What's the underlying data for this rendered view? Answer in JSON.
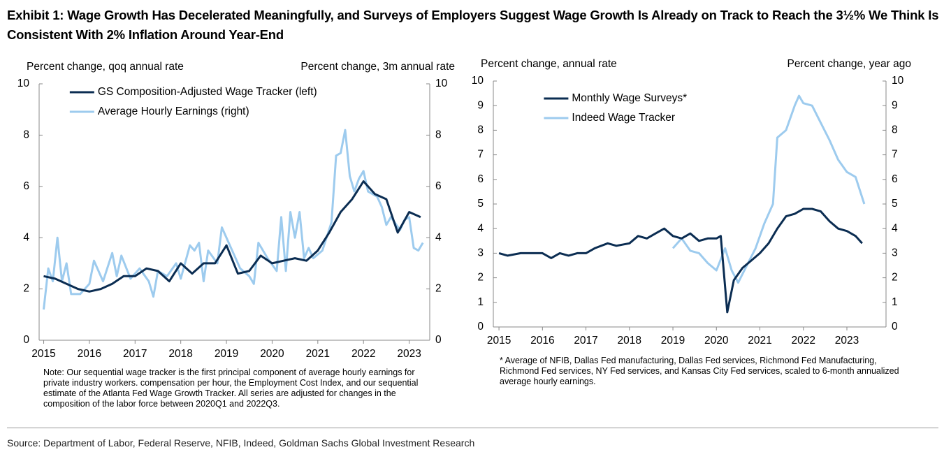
{
  "title": "Exhibit 1: Wage Growth Has Decelerated Meaningfully, and Surveys of Employers Suggest Wage Growth Is Already on Track to Reach the 3½% We Think Is Consistent With 2% Inflation Around Year-End",
  "source": "Source: Department of Labor, Federal Reserve, NFIB, Indeed, Goldman Sachs Global Investment Research",
  "chart_data": [
    {
      "type": "line",
      "ylabel": "Percent change, qoq annual rate",
      "y2label": "Percent change, 3m annual rate",
      "note": "Note: Our sequential wage tracker is the first principal component of average hourly earnings for private industry workers. compensation per hour, the Employment Cost Index, and our sequential estimate of the Atlanta Fed Wage Growth Tracker. All series are adjusted for changes in the composition of the labor force between 2020Q1 and 2022Q3.",
      "xlim": [
        2014.9,
        2023.45
      ],
      "xticks": [
        2015,
        2016,
        2017,
        2018,
        2019,
        2020,
        2021,
        2022,
        2023
      ],
      "ylim": [
        0,
        10
      ],
      "yticks": [
        0,
        2,
        4,
        6,
        8,
        10
      ],
      "y2lim": [
        0,
        10
      ],
      "y2ticks": [
        0,
        2,
        4,
        6,
        8,
        10
      ],
      "legend": "upper left",
      "series": [
        {
          "name": "GS Composition-Adjusted Wage Tracker (left)",
          "color": "#0b2d52",
          "x": [
            2015.0,
            2015.25,
            2015.5,
            2015.75,
            2016.0,
            2016.25,
            2016.5,
            2016.75,
            2017.0,
            2017.25,
            2017.5,
            2017.75,
            2018.0,
            2018.25,
            2018.5,
            2018.75,
            2019.0,
            2019.25,
            2019.5,
            2019.75,
            2020.0,
            2020.25,
            2020.5,
            2020.75,
            2021.0,
            2021.25,
            2021.5,
            2021.75,
            2022.0,
            2022.25,
            2022.5,
            2022.75,
            2023.0,
            2023.25
          ],
          "values": [
            2.5,
            2.4,
            2.2,
            2.0,
            1.9,
            2.0,
            2.2,
            2.5,
            2.5,
            2.8,
            2.7,
            2.3,
            3.0,
            2.6,
            3.0,
            3.0,
            3.7,
            2.6,
            2.7,
            3.3,
            3.0,
            3.1,
            3.2,
            3.1,
            3.5,
            4.2,
            5.0,
            5.5,
            6.2,
            5.7,
            5.5,
            4.2,
            5.0,
            4.8
          ]
        },
        {
          "name": "Average Hourly Earnings (right)",
          "color": "#9dcbee",
          "axis": "y2",
          "x": [
            2015.0,
            2015.1,
            2015.2,
            2015.3,
            2015.4,
            2015.5,
            2015.6,
            2015.8,
            2016.0,
            2016.1,
            2016.3,
            2016.5,
            2016.6,
            2016.7,
            2016.9,
            2017.1,
            2017.3,
            2017.4,
            2017.5,
            2017.7,
            2017.9,
            2018.0,
            2018.2,
            2018.3,
            2018.4,
            2018.5,
            2018.6,
            2018.8,
            2018.9,
            2019.1,
            2019.3,
            2019.5,
            2019.6,
            2019.7,
            2019.9,
            2020.1,
            2020.2,
            2020.3,
            2020.4,
            2020.5,
            2020.6,
            2020.7,
            2020.8,
            2020.9,
            2021.1,
            2021.3,
            2021.4,
            2021.5,
            2021.6,
            2021.7,
            2021.8,
            2021.9,
            2022.0,
            2022.1,
            2022.3,
            2022.4,
            2022.5,
            2022.6,
            2022.8,
            2022.9,
            2023.0,
            2023.1,
            2023.2,
            2023.3
          ],
          "values": [
            1.2,
            2.8,
            2.3,
            4.0,
            2.3,
            3.0,
            1.8,
            1.8,
            2.2,
            3.1,
            2.3,
            3.4,
            2.5,
            3.3,
            2.4,
            2.8,
            2.3,
            1.7,
            2.7,
            2.5,
            3.0,
            2.4,
            3.7,
            3.5,
            3.8,
            2.3,
            3.5,
            3.0,
            4.4,
            3.6,
            2.8,
            2.5,
            2.2,
            3.8,
            3.2,
            2.7,
            4.8,
            2.7,
            5.0,
            4.0,
            5.0,
            3.2,
            3.6,
            3.2,
            3.5,
            4.6,
            7.2,
            7.3,
            8.2,
            6.4,
            5.8,
            6.3,
            6.6,
            5.8,
            5.6,
            5.2,
            4.5,
            4.8,
            4.3,
            4.7,
            4.8,
            3.6,
            3.5,
            3.8
          ]
        }
      ]
    },
    {
      "type": "line",
      "ylabel": "Percent change, annual rate",
      "y2label": "Percent change, year ago",
      "note": "* Average of NFIB, Dallas Fed manufacturing, Dallas Fed services, Richmond Fed Manufacturing, Richmond Fed services, NY Fed services, and Kansas City Fed services, scaled to 6-month annualized average hourly earnings.",
      "xlim": [
        2014.87,
        2023.9
      ],
      "xticks": [
        2015,
        2016,
        2017,
        2018,
        2019,
        2020,
        2021,
        2022,
        2023
      ],
      "ylim": [
        0,
        10
      ],
      "yticks": [
        0,
        1,
        2,
        3,
        4,
        5,
        6,
        7,
        8,
        9,
        10
      ],
      "y2lim": [
        0,
        10
      ],
      "y2ticks": [
        0,
        1,
        2,
        3,
        4,
        5,
        6,
        7,
        8,
        9,
        10
      ],
      "legend": "upper center",
      "series": [
        {
          "name": "Monthly Wage Surveys*",
          "color": "#0b2d52",
          "x": [
            2015.0,
            2015.2,
            2015.5,
            2015.8,
            2016.0,
            2016.2,
            2016.4,
            2016.6,
            2016.8,
            2017.0,
            2017.2,
            2017.5,
            2017.7,
            2018.0,
            2018.2,
            2018.4,
            2018.6,
            2018.8,
            2019.0,
            2019.2,
            2019.4,
            2019.6,
            2019.8,
            2020.0,
            2020.1,
            2020.25,
            2020.4,
            2020.6,
            2020.8,
            2021.0,
            2021.2,
            2021.4,
            2021.6,
            2021.8,
            2022.0,
            2022.2,
            2022.4,
            2022.6,
            2022.8,
            2023.0,
            2023.2,
            2023.35
          ],
          "values": [
            3.0,
            2.9,
            3.0,
            3.0,
            3.0,
            2.8,
            3.0,
            2.9,
            3.0,
            3.0,
            3.2,
            3.4,
            3.3,
            3.4,
            3.7,
            3.6,
            3.8,
            4.0,
            3.7,
            3.6,
            3.8,
            3.5,
            3.6,
            3.6,
            3.7,
            0.6,
            1.9,
            2.4,
            2.7,
            3.0,
            3.4,
            4.0,
            4.5,
            4.6,
            4.8,
            4.8,
            4.7,
            4.3,
            4.0,
            3.9,
            3.7,
            3.4
          ]
        },
        {
          "name": "Indeed Wage Tracker",
          "color": "#9dcbee",
          "axis": "y2",
          "x": [
            2019.0,
            2019.2,
            2019.4,
            2019.6,
            2019.8,
            2020.0,
            2020.2,
            2020.35,
            2020.5,
            2020.7,
            2020.9,
            2021.1,
            2021.3,
            2021.4,
            2021.6,
            2021.8,
            2021.9,
            2022.0,
            2022.2,
            2022.4,
            2022.6,
            2022.8,
            2023.0,
            2023.2,
            2023.4
          ],
          "values": [
            3.2,
            3.6,
            3.1,
            3.0,
            2.6,
            2.3,
            3.2,
            2.3,
            1.8,
            2.5,
            3.2,
            4.2,
            5.0,
            7.7,
            8.0,
            9.0,
            9.4,
            9.1,
            9.0,
            8.3,
            7.6,
            6.8,
            6.3,
            6.1,
            5.0
          ]
        }
      ]
    }
  ]
}
